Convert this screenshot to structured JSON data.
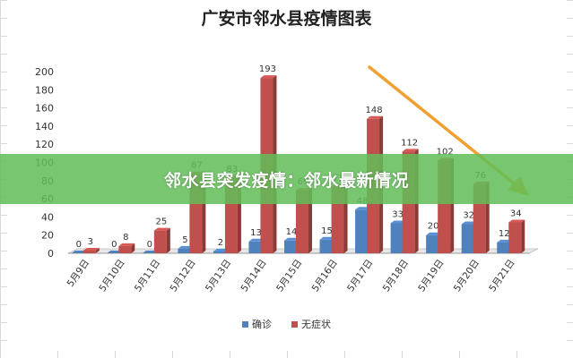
{
  "chart_data": {
    "type": "bar",
    "title": "广安市邻水县疫情图表",
    "categories": [
      "5月9日",
      "5月10日",
      "5月11日",
      "5月12日",
      "5月13日",
      "5月14日",
      "5月15日",
      "5月16日",
      "5月17日",
      "5月18日",
      "5月19日",
      "5月20日",
      "5月21日"
    ],
    "series": [
      {
        "name": "确诊",
        "color": "#4f81bd",
        "values": [
          0,
          0,
          0,
          5,
          2,
          13,
          14,
          15,
          48,
          33,
          20,
          32,
          12
        ]
      },
      {
        "name": "无症状",
        "color": "#c0504d",
        "values": [
          3,
          8,
          25,
          87,
          83,
          193,
          69,
          73,
          148,
          112,
          102,
          76,
          34
        ]
      }
    ],
    "ylim": [
      0,
      200
    ],
    "yticks": [
      0,
      20,
      40,
      60,
      80,
      100,
      120,
      140,
      160,
      180,
      200
    ],
    "grid": false,
    "legend": "bottom",
    "trend_arrow": {
      "color": "#f0a030"
    }
  },
  "banner": {
    "text": "邻水县突发疫情：邻水最新情况"
  }
}
